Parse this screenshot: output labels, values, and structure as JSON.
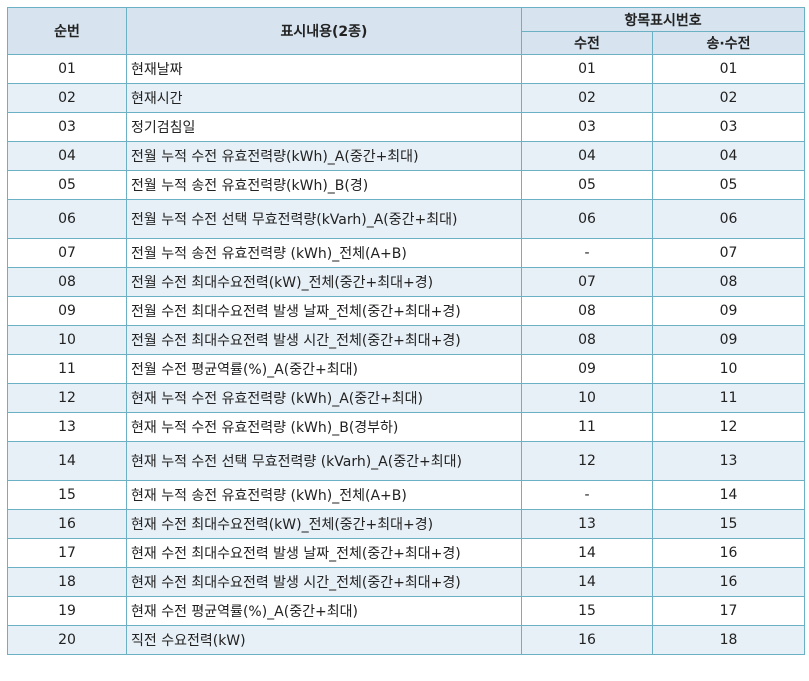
{
  "header": {
    "col_no": "순번",
    "col_content": "표시내용(2종)",
    "col_group": "항목표시번호",
    "col_recv": "수전",
    "col_sendrecv": "송·수전"
  },
  "rows": [
    {
      "no": "01",
      "content": "현재날짜",
      "recv": "01",
      "sendrecv": "01"
    },
    {
      "no": "02",
      "content": "현재시간",
      "recv": "02",
      "sendrecv": "02"
    },
    {
      "no": "03",
      "content": "정기검침일",
      "recv": "03",
      "sendrecv": "03"
    },
    {
      "no": "04",
      "content": "전월 누적 수전 유효전력량(kWh)_A(중간+최대)",
      "recv": "04",
      "sendrecv": "04"
    },
    {
      "no": "05",
      "content": "전월 누적 송전 유효전력량(kWh)_B(경)",
      "recv": "05",
      "sendrecv": "05"
    },
    {
      "no": "06",
      "content": "전월 누적 수전 선택 무효전력량(kVarh)_A(중간+최대)",
      "recv": "06",
      "sendrecv": "06"
    },
    {
      "no": "07",
      "content": "전월 누적 송전 유효전력량 (kWh)_전체(A+B)",
      "recv": "-",
      "sendrecv": "07"
    },
    {
      "no": "08",
      "content": "전월 수전 최대수요전력(kW)_전체(중간+최대+경)",
      "recv": "07",
      "sendrecv": "08"
    },
    {
      "no": "09",
      "content": "전월 수전 최대수요전력 발생 날짜_전체(중간+최대+경)",
      "recv": "08",
      "sendrecv": "09"
    },
    {
      "no": "10",
      "content": "전월 수전 최대수요전력 발생 시간_전체(중간+최대+경)",
      "recv": "08",
      "sendrecv": "09"
    },
    {
      "no": "11",
      "content": "전월 수전 평균역률(%)_A(중간+최대)",
      "recv": "09",
      "sendrecv": "10"
    },
    {
      "no": "12",
      "content": "현재 누적 수전 유효전력량 (kWh)_A(중간+최대)",
      "recv": "10",
      "sendrecv": "11"
    },
    {
      "no": "13",
      "content": "현재 누적 수전 유효전력량 (kWh)_B(경부하)",
      "recv": "11",
      "sendrecv": "12"
    },
    {
      "no": "14",
      "content": "현재 누적 수전 선택 무효전력량 (kVarh)_A(중간+최대)",
      "recv": "12",
      "sendrecv": "13"
    },
    {
      "no": "15",
      "content": "현재 누적 송전 유효전력량 (kWh)_전체(A+B)",
      "recv": "-",
      "sendrecv": "14"
    },
    {
      "no": "16",
      "content": "현재 수전 최대수요전력(kW)_전체(중간+최대+경)",
      "recv": "13",
      "sendrecv": "15"
    },
    {
      "no": "17",
      "content": "현재 수전 최대수요전력 발생 날짜_전체(중간+최대+경)",
      "recv": "14",
      "sendrecv": "16"
    },
    {
      "no": "18",
      "content": "현재 수전 최대수요전력 발생 시간_전체(중간+최대+경)",
      "recv": "14",
      "sendrecv": "16"
    },
    {
      "no": "19",
      "content": "현재 수전 평균역률(%)_A(중간+최대)",
      "recv": "15",
      "sendrecv": "17"
    },
    {
      "no": "20",
      "content": "직전 수요전력(kW)",
      "recv": "16",
      "sendrecv": "18"
    }
  ]
}
